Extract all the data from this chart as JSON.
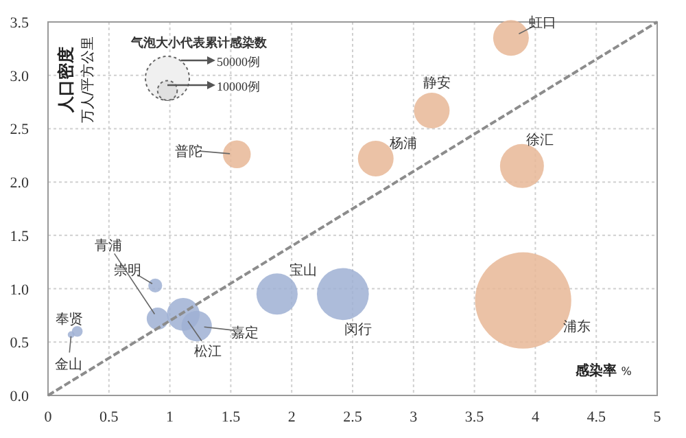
{
  "chart_data": {
    "type": "bubble",
    "xlabel": "感染率 %",
    "ylabel": "人口密度",
    "annotations": [
      "万人/平方公里"
    ],
    "legend_title": "气泡大小代表累计感染数",
    "size_legend": [
      {
        "value": 50000,
        "label": "50000例"
      },
      {
        "value": 10000,
        "label": "10000例"
      }
    ],
    "xlim": [
      0,
      5
    ],
    "xticks": [
      0,
      0.5,
      1,
      1.5,
      2,
      2.5,
      3,
      3.5,
      4,
      4.5,
      5
    ],
    "ylim": [
      0,
      3.5
    ],
    "yticks": [
      {
        "value": 0,
        "label": "0.0"
      },
      {
        "value": 0.5,
        "label": "0.5"
      },
      {
        "value": 1,
        "label": "1.0"
      },
      {
        "value": 1.5,
        "label": "1.5"
      },
      {
        "value": 2,
        "label": "2.0"
      },
      {
        "value": 2.5,
        "label": "2.5"
      },
      {
        "value": 3,
        "label": "3.0"
      },
      {
        "value": 3.5,
        "label": "3.5"
      }
    ],
    "grid": true,
    "series": [
      {
        "name": "虹口",
        "color": "#e8b796",
        "x": [
          3.8
        ],
        "values": [
          3.35
        ],
        "sizes": [
          33000
        ]
      },
      {
        "name": "静安",
        "color": "#e8b796",
        "x": [
          3.15
        ],
        "values": [
          2.67
        ],
        "sizes": [
          33000
        ]
      },
      {
        "name": "杨浦",
        "color": "#e8b796",
        "x": [
          2.69
        ],
        "values": [
          2.22
        ],
        "sizes": [
          33000
        ]
      },
      {
        "name": "徐汇",
        "color": "#e8b796",
        "x": [
          3.89
        ],
        "values": [
          2.15
        ],
        "sizes": [
          50000
        ]
      },
      {
        "name": "普陀",
        "color": "#e8b796",
        "x": [
          1.55
        ],
        "values": [
          2.26
        ],
        "sizes": [
          20000
        ]
      },
      {
        "name": "浦东",
        "color": "#e8b796",
        "x": [
          3.9
        ],
        "values": [
          0.89
        ],
        "sizes": [
          240000
        ]
      },
      {
        "name": "闵行",
        "color": "#9fb0d4",
        "x": [
          2.42
        ],
        "values": [
          0.95
        ],
        "sizes": [
          70000
        ]
      },
      {
        "name": "宝山",
        "color": "#9fb0d4",
        "x": [
          1.88
        ],
        "values": [
          0.95
        ],
        "sizes": [
          44000
        ]
      },
      {
        "name": "嘉定",
        "color": "#9fb0d4",
        "x": [
          1.22
        ],
        "values": [
          0.65
        ],
        "sizes": [
          24000
        ]
      },
      {
        "name": "松江",
        "color": "#9fb0d4",
        "x": [
          1.11
        ],
        "values": [
          0.76
        ],
        "sizes": [
          28000
        ]
      },
      {
        "name": "青浦",
        "color": "#9fb0d4",
        "x": [
          0.9
        ],
        "values": [
          0.72
        ],
        "sizes": [
          12500
        ]
      },
      {
        "name": "崇明",
        "color": "#9fb0d4",
        "x": [
          0.88
        ],
        "values": [
          1.03
        ],
        "sizes": [
          5000
        ]
      },
      {
        "name": "奉贤",
        "color": "#9fb0d4",
        "x": [
          0.24
        ],
        "values": [
          0.6
        ],
        "sizes": [
          3000
        ]
      },
      {
        "name": "金山",
        "color": "#9fb0d4",
        "x": [
          0.19
        ],
        "values": [
          0.57
        ],
        "sizes": [
          1200
        ]
      },
      {
        "type": "line",
        "color": "#8c8c8c",
        "line_style": "dashed",
        "x": [
          0,
          5
        ],
        "values": [
          0,
          3.5
        ]
      }
    ]
  }
}
